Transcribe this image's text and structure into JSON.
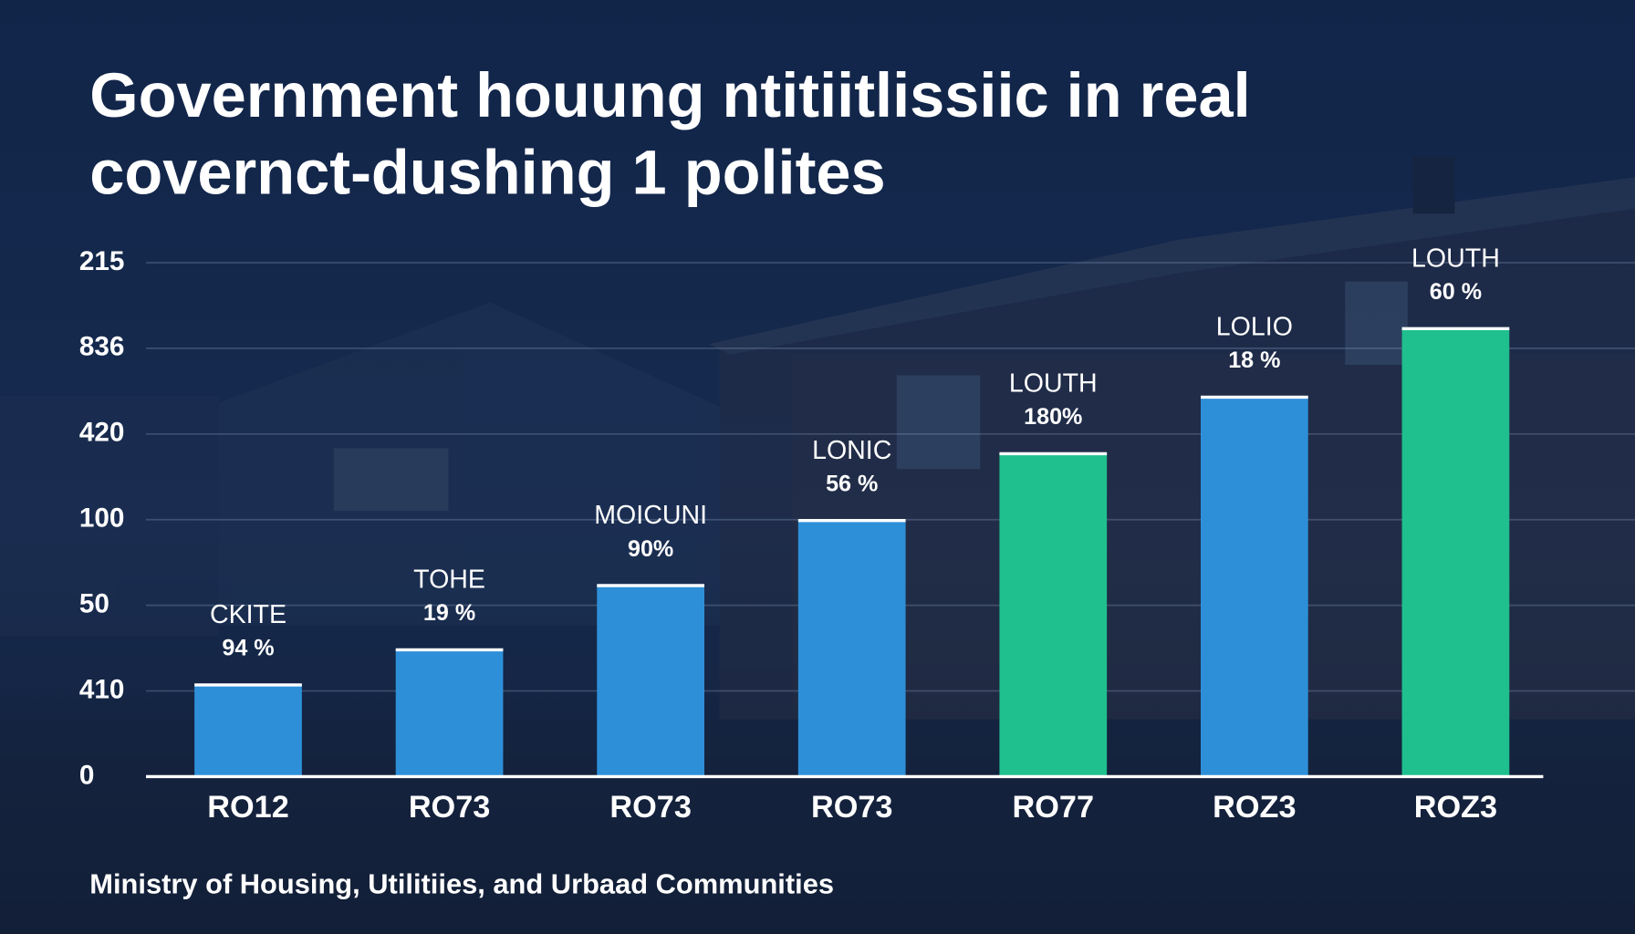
{
  "chart_data": {
    "type": "bar",
    "title": [
      "Government houung ntitiitlissiic in real",
      "covernct-dushing 1 polites"
    ],
    "source": "Ministry of Housing, Utilitiies, and Urbaad Communities",
    "categories": [
      "RO12",
      "RO73",
      "RO73",
      "RO73",
      "RO77",
      "ROZ3",
      "ROZ3"
    ],
    "values": [
      1.07,
      1.48,
      2.23,
      2.99,
      3.77,
      4.43,
      5.23
    ],
    "colors": [
      "#2e8fd9",
      "#2e8fd9",
      "#2e8fd9",
      "#2e8fd9",
      "#1fc08e",
      "#2e8fd9",
      "#1fc08e"
    ],
    "annotations": [
      {
        "name": "CKITE",
        "text": "94 %"
      },
      {
        "name": "TOHE",
        "text": "19 %"
      },
      {
        "name": "MOICUNI",
        "text": "90%"
      },
      {
        "name": "LONIC",
        "text": "56 %"
      },
      {
        "name": "LOUTH",
        "text": "180%"
      },
      {
        "name": "LOLIO",
        "text": "18 %"
      },
      {
        "name": "LOUTH",
        "text": "60 %"
      }
    ],
    "ylim": [
      0,
      6
    ],
    "yticks": [
      {
        "value": 0,
        "label": "0"
      },
      {
        "value": 1,
        "label": "410"
      },
      {
        "value": 2,
        "label": "50"
      },
      {
        "value": 3,
        "label": "100"
      },
      {
        "value": 4,
        "label": "420"
      },
      {
        "value": 5,
        "label": "836"
      },
      {
        "value": 6,
        "label": "215"
      }
    ],
    "grid": true
  }
}
